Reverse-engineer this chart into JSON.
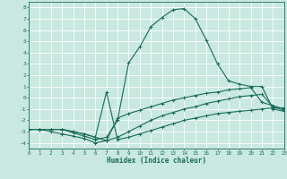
{
  "xlabel": "Humidex (Indice chaleur)",
  "xlim": [
    0,
    23
  ],
  "ylim": [
    -4.5,
    8.5
  ],
  "yticks": [
    -4,
    -3,
    -2,
    -1,
    0,
    1,
    2,
    3,
    4,
    5,
    6,
    7,
    8
  ],
  "xticks": [
    0,
    1,
    2,
    3,
    4,
    5,
    6,
    7,
    8,
    9,
    10,
    11,
    12,
    13,
    14,
    15,
    16,
    17,
    18,
    19,
    20,
    21,
    22,
    23
  ],
  "bg_color": "#c8e8e0",
  "line_color": "#1a6b5a",
  "grid_color": "#ffffff",
  "line1_x": [
    0,
    1,
    2,
    3,
    4,
    5,
    6,
    7,
    8,
    9,
    10,
    11,
    12,
    13,
    14,
    15,
    16,
    17,
    18,
    19,
    20,
    21,
    22,
    23
  ],
  "line1_y": [
    -2.8,
    -2.8,
    -2.8,
    -2.8,
    -3.1,
    -3.4,
    -3.7,
    -3.5,
    -2.0,
    3.1,
    4.5,
    6.3,
    7.1,
    7.8,
    7.9,
    7.0,
    5.1,
    3.0,
    1.5,
    1.2,
    1.0,
    1.0,
    -1.0,
    -1.2
  ],
  "line2_x": [
    0,
    1,
    2,
    3,
    4,
    5,
    6,
    7,
    8,
    9,
    10,
    11,
    12,
    13,
    14,
    15,
    16,
    17,
    18,
    19,
    20,
    21,
    22,
    23
  ],
  "line2_y": [
    -2.8,
    -2.8,
    -2.8,
    -2.8,
    -3.0,
    -3.2,
    -3.5,
    0.5,
    -3.7,
    -3.5,
    -3.2,
    -2.9,
    -2.6,
    -2.3,
    -2.0,
    -1.8,
    -1.6,
    -1.4,
    -1.3,
    -1.2,
    -1.1,
    -1.0,
    -0.9,
    -0.9
  ],
  "line3_x": [
    0,
    1,
    2,
    3,
    4,
    5,
    6,
    7,
    8,
    9,
    10,
    11,
    12,
    13,
    14,
    15,
    16,
    17,
    18,
    19,
    20,
    21,
    22,
    23
  ],
  "line3_y": [
    -2.8,
    -2.8,
    -2.8,
    -2.8,
    -3.0,
    -3.2,
    -3.5,
    -3.8,
    -1.8,
    -1.4,
    -1.1,
    -0.8,
    -0.5,
    -0.2,
    0.0,
    0.2,
    0.4,
    0.5,
    0.7,
    0.8,
    0.9,
    -0.4,
    -0.7,
    -1.0
  ],
  "line4_x": [
    0,
    1,
    2,
    3,
    4,
    5,
    6,
    7,
    8,
    9,
    10,
    11,
    12,
    13,
    14,
    15,
    16,
    17,
    18,
    19,
    20,
    21,
    22,
    23
  ],
  "line4_y": [
    -2.8,
    -2.8,
    -3.0,
    -3.2,
    -3.4,
    -3.6,
    -4.0,
    -3.8,
    -3.5,
    -3.0,
    -2.5,
    -2.0,
    -1.6,
    -1.3,
    -1.0,
    -0.8,
    -0.5,
    -0.3,
    -0.1,
    0.1,
    0.2,
    0.3,
    -0.8,
    -1.1
  ]
}
